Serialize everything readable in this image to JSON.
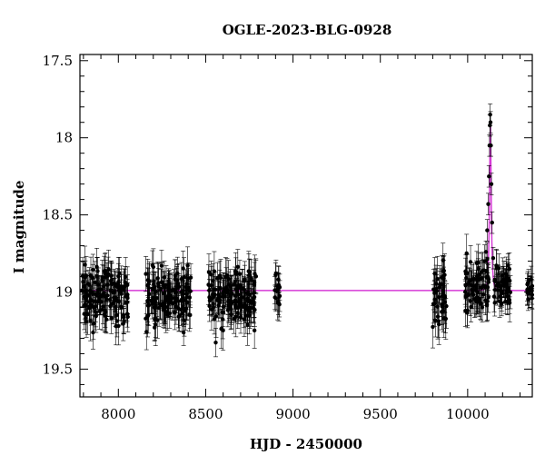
{
  "chart_data": {
    "type": "scatter",
    "title": "OGLE-2023-BLG-0928",
    "xlabel": "HJD - 2450000",
    "ylabel": "I magnitude",
    "xlim": [
      7780,
      10370
    ],
    "ylim": [
      19.68,
      17.46
    ],
    "y_inverted": true,
    "x_ticks": [
      8000,
      8500,
      9000,
      9500,
      10000
    ],
    "x_tick_labels": [
      "8000",
      "8500",
      "9000",
      "9500",
      "10000"
    ],
    "y_ticks": [
      17.5,
      18,
      18.5,
      19,
      19.5
    ],
    "y_tick_labels": [
      "17.5",
      "18",
      "18.5",
      "19",
      "19.5"
    ],
    "grid": false,
    "legend": "none",
    "series": [
      {
        "kind": "observations with error bars",
        "color": "#000000",
        "seasons": [
          {
            "x_range": [
              7790,
              8055
            ],
            "mean_mag": 19.02,
            "scatter": 0.12,
            "error": 0.11
          },
          {
            "x_range": [
              8155,
              8415
            ],
            "mean_mag": 19.03,
            "scatter": 0.11,
            "error": 0.11
          },
          {
            "x_range": [
              8515,
              8790
            ],
            "mean_mag": 19.02,
            "scatter": 0.12,
            "error": 0.11
          },
          {
            "x_range": [
              8895,
              8925
            ],
            "mean_mag": 19.0,
            "scatter": 0.08,
            "error": 0.1
          },
          {
            "x_range": [
              9800,
              9880
            ],
            "mean_mag": 19.05,
            "scatter": 0.13,
            "error": 0.12
          },
          {
            "x_range": [
              9985,
              10120
            ],
            "mean_mag": 18.95,
            "scatter": 0.1,
            "error": 0.1
          },
          {
            "x_range": [
              10150,
              10245
            ],
            "mean_mag": 18.97,
            "scatter": 0.1,
            "error": 0.1
          },
          {
            "x_range": [
              10340,
              10370
            ],
            "mean_mag": 18.98,
            "scatter": 0.05,
            "error": 0.08
          }
        ],
        "peak_points": [
          {
            "x": 10092,
            "y": 18.86
          },
          {
            "x": 10105,
            "y": 18.74
          },
          {
            "x": 10112,
            "y": 18.6
          },
          {
            "x": 10118,
            "y": 18.43
          },
          {
            "x": 10122,
            "y": 18.25
          },
          {
            "x": 10125,
            "y": 18.05
          },
          {
            "x": 10127,
            "y": 17.92
          },
          {
            "x": 10129,
            "y": 17.85
          },
          {
            "x": 10131,
            "y": 17.9
          },
          {
            "x": 10133,
            "y": 18.05
          },
          {
            "x": 10136,
            "y": 18.3
          },
          {
            "x": 10140,
            "y": 18.55
          },
          {
            "x": 10146,
            "y": 18.78
          },
          {
            "x": 10155,
            "y": 18.92
          }
        ]
      },
      {
        "kind": "model curve",
        "color": "#d63cd6",
        "baseline": 18.99,
        "t0": 10130,
        "peak_mag": 17.88,
        "tE_days": 9.5,
        "u0": 0.36
      }
    ]
  }
}
